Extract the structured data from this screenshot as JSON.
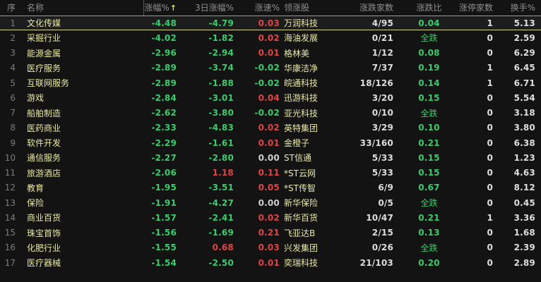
{
  "table": {
    "columns": [
      {
        "key": "seq",
        "label": "序"
      },
      {
        "key": "name",
        "label": "名称"
      },
      {
        "key": "change",
        "label": "涨幅%",
        "sort_arrow": "↑"
      },
      {
        "key": "change3d",
        "label": "3日涨幅%"
      },
      {
        "key": "speed",
        "label": "涨速%"
      },
      {
        "key": "leader",
        "label": "领涨股"
      },
      {
        "key": "updown",
        "label": "涨跌家数"
      },
      {
        "key": "ratio",
        "label": "涨跌比"
      },
      {
        "key": "limit",
        "label": "涨停家数"
      },
      {
        "key": "turnover",
        "label": "换手%"
      }
    ],
    "rows": [
      {
        "seq": "1",
        "name": "文化传媒",
        "change": "-4.48",
        "change3d": "-4.79",
        "speed": "0.03",
        "leader": "万润科技",
        "updown": "4/95",
        "ratio": "0.04",
        "limit": "1",
        "turnover": "5.13",
        "selected": true
      },
      {
        "seq": "2",
        "name": "采掘行业",
        "change": "-4.02",
        "change3d": "-1.82",
        "speed": "0.02",
        "leader": "海油发展",
        "updown": "0/21",
        "ratio": "全跌",
        "limit": "0",
        "turnover": "2.59",
        "selected": false
      },
      {
        "seq": "3",
        "name": "能源金属",
        "change": "-2.96",
        "change3d": "-2.94",
        "speed": "0.01",
        "leader": "格林美",
        "updown": "1/12",
        "ratio": "0.08",
        "limit": "0",
        "turnover": "6.29",
        "selected": false
      },
      {
        "seq": "4",
        "name": "医疗服务",
        "change": "-2.89",
        "change3d": "-3.74",
        "speed": "-0.02",
        "leader": "华康洁净",
        "updown": "7/37",
        "ratio": "0.19",
        "limit": "1",
        "turnover": "6.45",
        "selected": false
      },
      {
        "seq": "5",
        "name": "互联网服务",
        "change": "-2.89",
        "change3d": "-1.88",
        "speed": "-0.02",
        "leader": "皖通科技",
        "updown": "18/126",
        "ratio": "0.14",
        "limit": "1",
        "turnover": "6.71",
        "selected": false
      },
      {
        "seq": "6",
        "name": "游戏",
        "change": "-2.84",
        "change3d": "-3.01",
        "speed": "0.04",
        "leader": "迅游科技",
        "updown": "3/20",
        "ratio": "0.15",
        "limit": "0",
        "turnover": "5.54",
        "selected": false
      },
      {
        "seq": "7",
        "name": "船舶制造",
        "change": "-2.62",
        "change3d": "-3.80",
        "speed": "-0.02",
        "leader": "亚光科技",
        "updown": "0/10",
        "ratio": "全跌",
        "limit": "0",
        "turnover": "3.18",
        "selected": false
      },
      {
        "seq": "8",
        "name": "医药商业",
        "change": "-2.33",
        "change3d": "-4.83",
        "speed": "0.02",
        "leader": "英特集团",
        "updown": "3/29",
        "ratio": "0.10",
        "limit": "0",
        "turnover": "3.80",
        "selected": false
      },
      {
        "seq": "9",
        "name": "软件开发",
        "change": "-2.29",
        "change3d": "-1.61",
        "speed": "0.01",
        "leader": "金橙子",
        "updown": "33/160",
        "ratio": "0.21",
        "limit": "0",
        "turnover": "6.38",
        "selected": false
      },
      {
        "seq": "10",
        "name": "通信服务",
        "change": "-2.27",
        "change3d": "-2.80",
        "speed": "0.00",
        "leader": "ST信通",
        "updown": "5/33",
        "ratio": "0.15",
        "limit": "0",
        "turnover": "1.23",
        "selected": false
      },
      {
        "seq": "11",
        "name": "旅游酒店",
        "change": "-2.06",
        "change3d": "1.18",
        "speed": "0.11",
        "leader": "*ST云网",
        "updown": "5/33",
        "ratio": "0.15",
        "limit": "0",
        "turnover": "4.63",
        "selected": false
      },
      {
        "seq": "12",
        "name": "教育",
        "change": "-1.95",
        "change3d": "-3.51",
        "speed": "0.05",
        "leader": "*ST传智",
        "updown": "6/9",
        "ratio": "0.67",
        "limit": "0",
        "turnover": "8.12",
        "selected": false
      },
      {
        "seq": "13",
        "name": "保险",
        "change": "-1.91",
        "change3d": "-4.27",
        "speed": "0.00",
        "leader": "新华保险",
        "updown": "0/5",
        "ratio": "全跌",
        "limit": "0",
        "turnover": "0.45",
        "selected": false
      },
      {
        "seq": "14",
        "name": "商业百货",
        "change": "-1.57",
        "change3d": "-2.41",
        "speed": "0.02",
        "leader": "新华百货",
        "updown": "10/47",
        "ratio": "0.21",
        "limit": "1",
        "turnover": "3.36",
        "selected": false
      },
      {
        "seq": "15",
        "name": "珠宝首饰",
        "change": "-1.56",
        "change3d": "-1.69",
        "speed": "0.21",
        "leader": "飞亚达B",
        "updown": "2/15",
        "ratio": "0.13",
        "limit": "0",
        "turnover": "1.68",
        "selected": false
      },
      {
        "seq": "16",
        "name": "化肥行业",
        "change": "-1.55",
        "change3d": "0.68",
        "speed": "0.03",
        "leader": "兴发集团",
        "updown": "0/26",
        "ratio": "全跌",
        "limit": "0",
        "turnover": "2.39",
        "selected": false
      },
      {
        "seq": "17",
        "name": "医疗器械",
        "change": "-1.54",
        "change3d": "-2.50",
        "speed": "0.01",
        "leader": "奕瑞科技",
        "updown": "21/103",
        "ratio": "0.20",
        "limit": "0",
        "turnover": "2.89",
        "selected": false
      }
    ],
    "colors": {
      "up": "#e04545",
      "down": "#3acc6d",
      "flat": "#cfcfcf",
      "name": "#e9e9a8",
      "value": "#dedede",
      "header": "#8f8f8f",
      "index": "#7d7d7d",
      "background": "#131313",
      "selected_background": "#1d1d1d",
      "selection_border_top": "#9a9a9a",
      "selection_border_bottom": "#d6d68e",
      "sort_arrow": "#e3e35a"
    }
  }
}
